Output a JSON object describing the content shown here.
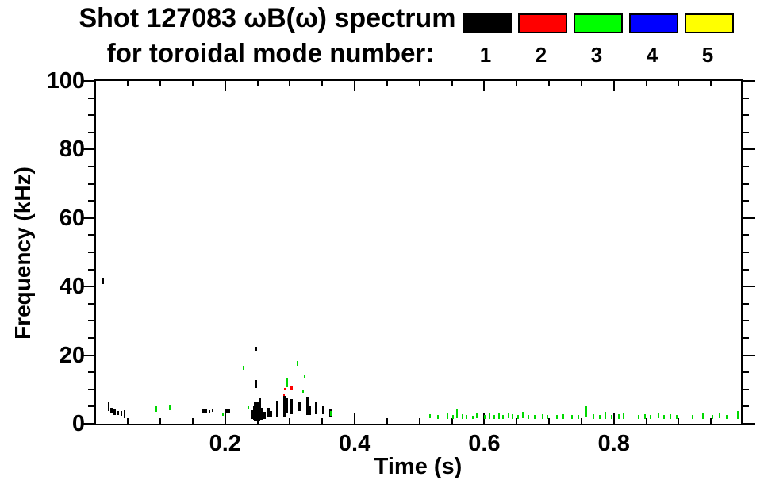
{
  "title": {
    "line1": "Shot 127083 ωB(ω) spectrum",
    "line2": "for toroidal mode number:"
  },
  "legend": {
    "modes": [
      {
        "label": "1",
        "color": "#000000"
      },
      {
        "label": "2",
        "color": "#ff0000"
      },
      {
        "label": "3",
        "color": "#00ff00"
      },
      {
        "label": "4",
        "color": "#0000ff"
      },
      {
        "label": "5",
        "color": "#ffff00"
      }
    ]
  },
  "chart_data": {
    "type": "scatter",
    "title": "Shot 127083 ωB(ω) spectrum for toroidal mode number:",
    "xlabel": "Time (s)",
    "ylabel": "Frequency (kHz)",
    "xlim": [
      0,
      1.0
    ],
    "ylim": [
      0,
      100
    ],
    "x_major_ticks": [
      0.2,
      0.4,
      0.6,
      0.8
    ],
    "x_tick_labels": [
      "0.2",
      "0.4",
      "0.6",
      "0.8"
    ],
    "x_minor_step": 0.05,
    "y_major_ticks": [
      0,
      20,
      40,
      60,
      80,
      100
    ],
    "y_tick_labels": [
      "0",
      "20",
      "40",
      "60",
      "80",
      "100"
    ],
    "y_minor_step": 5,
    "grid": false,
    "legend_position": "top-right",
    "point_format": "[time_s, freq_low_kHz, freq_high_kHz, width_px]",
    "series": [
      {
        "name": "mode 1",
        "color": "#000000",
        "points": [
          [
            0.012,
            40.8,
            42.5,
            2
          ],
          [
            0.02,
            3.8,
            6.2,
            2
          ],
          [
            0.024,
            3.0,
            4.6,
            3
          ],
          [
            0.029,
            2.6,
            4.2,
            3
          ],
          [
            0.034,
            2.5,
            3.8,
            3
          ],
          [
            0.04,
            2.2,
            3.6,
            2
          ],
          [
            0.045,
            1.6,
            3.9,
            2
          ],
          [
            0.166,
            3.2,
            4.1,
            3
          ],
          [
            0.171,
            3.3,
            4.2,
            2
          ],
          [
            0.176,
            3.2,
            4.0,
            2
          ],
          [
            0.181,
            3.4,
            4.2,
            2
          ],
          [
            0.202,
            3.1,
            4.4,
            4
          ],
          [
            0.206,
            3.0,
            4.1,
            3
          ],
          [
            0.2485,
            21.2,
            22.4,
            2
          ],
          [
            0.2485,
            10.4,
            12.7,
            2
          ],
          [
            0.242,
            1.5,
            4.0,
            3
          ],
          [
            0.245,
            1.2,
            5.2,
            4
          ],
          [
            0.248,
            1.0,
            6.3,
            5
          ],
          [
            0.252,
            1.0,
            6.5,
            4
          ],
          [
            0.2545,
            1.2,
            7.4,
            2
          ],
          [
            0.257,
            1.2,
            4.6,
            4
          ],
          [
            0.261,
            1.5,
            3.4,
            3
          ],
          [
            0.267,
            2.0,
            4.6,
            3
          ],
          [
            0.271,
            2.0,
            3.8,
            3
          ],
          [
            0.28,
            2.0,
            6.7,
            3
          ],
          [
            0.2915,
            2.0,
            8.0,
            3
          ],
          [
            0.296,
            3.2,
            7.4,
            2
          ],
          [
            0.303,
            2.8,
            7.1,
            3
          ],
          [
            0.315,
            3.7,
            6.3,
            3
          ],
          [
            0.328,
            2.5,
            7.8,
            4
          ],
          [
            0.3315,
            2.5,
            5.0,
            2
          ],
          [
            0.341,
            2.8,
            6.3,
            3
          ],
          [
            0.352,
            2.8,
            5.1,
            3
          ],
          [
            0.362,
            2.1,
            4.4,
            3
          ]
        ]
      },
      {
        "name": "mode 2",
        "color": "#ff0000",
        "points": [
          [
            0.2905,
            8.2,
            8.7,
            2
          ],
          [
            0.2915,
            9.7,
            10.4,
            2
          ],
          [
            0.3025,
            10.0,
            10.9,
            3
          ]
        ]
      },
      {
        "name": "mode 3",
        "color": "#00d800",
        "points": [
          [
            0.0935,
            3.5,
            5.0,
            2
          ],
          [
            0.114,
            4.0,
            5.5,
            2
          ],
          [
            0.196,
            2.2,
            3.3,
            2
          ],
          [
            0.228,
            15.8,
            16.9,
            2
          ],
          [
            0.236,
            4.2,
            5.2,
            2
          ],
          [
            0.295,
            10.6,
            13.1,
            3
          ],
          [
            0.312,
            17.0,
            18.2,
            2
          ],
          [
            0.32,
            9.0,
            9.9,
            2
          ],
          [
            0.323,
            13.1,
            14.2,
            2
          ],
          [
            0.363,
            2.2,
            3.6,
            2
          ],
          [
            0.516,
            1.6,
            2.8,
            2
          ],
          [
            0.528,
            1.5,
            2.5,
            2
          ],
          [
            0.543,
            1.5,
            3.0,
            2
          ],
          [
            0.552,
            1.5,
            2.6,
            2
          ],
          [
            0.558,
            1.6,
            4.4,
            2
          ],
          [
            0.566,
            1.5,
            2.8,
            2
          ],
          [
            0.573,
            1.5,
            2.6,
            2
          ],
          [
            0.582,
            1.5,
            2.4,
            2
          ],
          [
            0.589,
            1.6,
            3.2,
            2
          ],
          [
            0.601,
            1.5,
            2.6,
            2
          ],
          [
            0.608,
            1.5,
            2.9,
            2
          ],
          [
            0.616,
            1.5,
            2.5,
            2
          ],
          [
            0.623,
            1.5,
            3.0,
            2
          ],
          [
            0.629,
            1.5,
            2.6,
            2
          ],
          [
            0.637,
            1.6,
            3.2,
            2
          ],
          [
            0.644,
            1.5,
            2.7,
            2
          ],
          [
            0.652,
            1.5,
            2.5,
            2
          ],
          [
            0.66,
            1.6,
            3.5,
            2
          ],
          [
            0.668,
            1.5,
            2.6,
            2
          ],
          [
            0.678,
            1.5,
            2.5,
            2
          ],
          [
            0.69,
            1.5,
            2.8,
            2
          ],
          [
            0.698,
            1.5,
            2.5,
            2
          ],
          [
            0.712,
            1.5,
            2.6,
            2
          ],
          [
            0.722,
            1.5,
            2.8,
            2
          ],
          [
            0.735,
            1.5,
            2.5,
            2
          ],
          [
            0.745,
            1.5,
            2.6,
            2
          ],
          [
            0.758,
            1.8,
            5.2,
            2
          ],
          [
            0.768,
            1.5,
            2.8,
            2
          ],
          [
            0.778,
            1.5,
            2.6,
            2
          ],
          [
            0.787,
            1.5,
            3.4,
            2
          ],
          [
            0.797,
            1.5,
            2.5,
            2
          ],
          [
            0.808,
            1.5,
            2.8,
            2
          ],
          [
            0.815,
            1.5,
            3.2,
            2
          ],
          [
            0.838,
            1.5,
            2.6,
            2
          ],
          [
            0.848,
            1.5,
            2.8,
            2
          ],
          [
            0.857,
            1.5,
            2.5,
            2
          ],
          [
            0.869,
            1.6,
            3.0,
            2
          ],
          [
            0.878,
            1.5,
            2.6,
            2
          ],
          [
            0.887,
            1.5,
            2.8,
            2
          ],
          [
            0.897,
            1.5,
            2.5,
            2
          ],
          [
            0.922,
            1.5,
            2.6,
            2
          ],
          [
            0.938,
            1.5,
            2.9,
            2
          ],
          [
            0.952,
            1.5,
            2.5,
            2
          ],
          [
            0.963,
            1.6,
            3.3,
            2
          ],
          [
            0.9745,
            1.5,
            2.5,
            2
          ],
          [
            0.991,
            1.5,
            3.8,
            2
          ]
        ]
      },
      {
        "name": "mode 4",
        "color": "#0000ff",
        "points": []
      },
      {
        "name": "mode 5",
        "color": "#ffff00",
        "points": []
      }
    ]
  }
}
